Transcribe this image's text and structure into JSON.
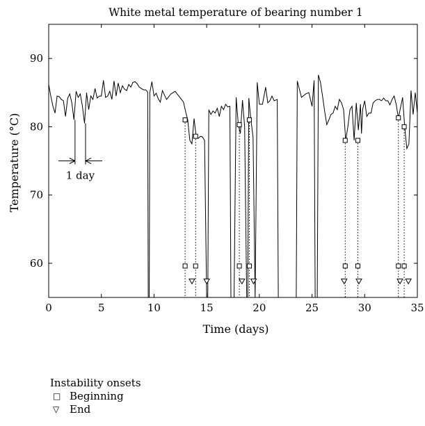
{
  "chart_data": {
    "type": "line",
    "title": "White metal temperature of bearing number 1",
    "xlabel": "Time (days)",
    "ylabel": "Temperature (°C)",
    "xlim": [
      0,
      35
    ],
    "ylim": [
      55,
      95
    ],
    "x_ticks": [
      0,
      5,
      10,
      15,
      20,
      25,
      30,
      35
    ],
    "y_ticks": [
      60,
      70,
      80,
      90
    ],
    "grid": false,
    "series": [
      {
        "points": [
          [
            0.0,
            86.2
          ],
          [
            0.2,
            84.5
          ],
          [
            0.4,
            83.0
          ],
          [
            0.6,
            82.0
          ],
          [
            0.8,
            84.5
          ],
          [
            1.0,
            84.4
          ],
          [
            1.2,
            84.0
          ],
          [
            1.4,
            83.8
          ],
          [
            1.6,
            81.5
          ],
          [
            1.8,
            84.2
          ],
          [
            2.0,
            84.8
          ],
          [
            2.2,
            83.5
          ],
          [
            2.4,
            81.0
          ],
          [
            2.6,
            85.2
          ],
          [
            2.8,
            84.3
          ],
          [
            3.0,
            84.8
          ],
          [
            3.2,
            83.0
          ],
          [
            3.4,
            80.5
          ],
          [
            3.6,
            85.0
          ],
          [
            3.8,
            82.5
          ],
          [
            4.0,
            84.5
          ],
          [
            4.2,
            84.0
          ],
          [
            4.4,
            85.6
          ],
          [
            4.6,
            84.2
          ],
          [
            4.8,
            84.5
          ],
          [
            5.0,
            84.5
          ],
          [
            5.2,
            86.8
          ],
          [
            5.4,
            84.3
          ],
          [
            5.6,
            84.5
          ],
          [
            5.8,
            85.2
          ],
          [
            6.0,
            84.0
          ],
          [
            6.2,
            86.7
          ],
          [
            6.4,
            84.5
          ],
          [
            6.6,
            86.4
          ],
          [
            6.8,
            85.0
          ],
          [
            7.0,
            86.0
          ],
          [
            7.2,
            85.5
          ],
          [
            7.4,
            85.3
          ],
          [
            7.6,
            86.2
          ],
          [
            7.8,
            85.8
          ],
          [
            8.0,
            86.5
          ],
          [
            8.2,
            86.6
          ],
          [
            8.4,
            86.3
          ],
          [
            8.6,
            85.8
          ],
          [
            8.8,
            85.6
          ],
          [
            9.0,
            85.4
          ],
          [
            9.2,
            85.4
          ],
          [
            9.4,
            85.1
          ],
          [
            9.45,
            55.0
          ],
          [
            9.55,
            55.0
          ],
          [
            9.6,
            85.0
          ],
          [
            9.8,
            86.6
          ],
          [
            10.0,
            84.5
          ],
          [
            10.2,
            84.9
          ],
          [
            10.4,
            84.1
          ],
          [
            10.6,
            83.6
          ],
          [
            10.8,
            85.3
          ],
          [
            11.0,
            84.6
          ],
          [
            11.2,
            84.0
          ],
          [
            11.4,
            84.4
          ],
          [
            11.6,
            84.8
          ],
          [
            11.8,
            85.0
          ],
          [
            12.0,
            85.2
          ],
          [
            12.2,
            84.8
          ],
          [
            12.4,
            84.4
          ],
          [
            12.6,
            84.0
          ],
          [
            12.8,
            83.6
          ],
          [
            13.0,
            82.2
          ],
          [
            13.2,
            81.0
          ],
          [
            13.4,
            78.0
          ],
          [
            13.6,
            77.5
          ],
          [
            13.8,
            81.2
          ],
          [
            14.0,
            78.6
          ],
          [
            14.2,
            78.3
          ],
          [
            14.4,
            78.6
          ],
          [
            14.6,
            78.5
          ],
          [
            14.8,
            78.0
          ],
          [
            15.0,
            55.0
          ],
          [
            15.1,
            55.0
          ],
          [
            15.2,
            82.5
          ],
          [
            15.4,
            81.8
          ],
          [
            15.6,
            82.3
          ],
          [
            15.8,
            82.0
          ],
          [
            16.0,
            82.7
          ],
          [
            16.2,
            81.5
          ],
          [
            16.4,
            83.0
          ],
          [
            16.6,
            82.5
          ],
          [
            16.8,
            83.3
          ],
          [
            17.0,
            82.9
          ],
          [
            17.2,
            83.0
          ],
          [
            17.3,
            55.0
          ],
          [
            17.6,
            55.0
          ],
          [
            17.8,
            84.3
          ],
          [
            18.0,
            80.3
          ],
          [
            18.2,
            79.0
          ],
          [
            18.4,
            83.9
          ],
          [
            18.6,
            80.0
          ],
          [
            18.8,
            55.0
          ],
          [
            18.9,
            55.0
          ],
          [
            19.0,
            84.2
          ],
          [
            19.2,
            81.0
          ],
          [
            19.4,
            78.5
          ],
          [
            19.6,
            55.0
          ],
          [
            19.8,
            86.5
          ],
          [
            20.0,
            83.3
          ],
          [
            20.3,
            83.3
          ],
          [
            20.6,
            85.8
          ],
          [
            20.8,
            83.5
          ],
          [
            21.0,
            83.8
          ],
          [
            21.2,
            84.5
          ],
          [
            21.4,
            83.8
          ],
          [
            21.7,
            84.0
          ],
          [
            21.8,
            55.0
          ],
          [
            23.5,
            55.0
          ],
          [
            23.6,
            86.7
          ],
          [
            24.0,
            84.3
          ],
          [
            24.4,
            84.8
          ],
          [
            24.7,
            85.0
          ],
          [
            25.0,
            83.0
          ],
          [
            25.2,
            86.8
          ],
          [
            25.3,
            55.0
          ],
          [
            25.5,
            55.0
          ],
          [
            25.6,
            87.6
          ],
          [
            25.8,
            86.5
          ],
          [
            26.0,
            84.5
          ],
          [
            26.2,
            82.3
          ],
          [
            26.4,
            80.3
          ],
          [
            26.6,
            81.0
          ],
          [
            26.8,
            81.8
          ],
          [
            27.0,
            82.0
          ],
          [
            27.2,
            83.0
          ],
          [
            27.4,
            82.5
          ],
          [
            27.6,
            84.0
          ],
          [
            27.8,
            83.5
          ],
          [
            28.0,
            82.5
          ],
          [
            28.2,
            78.0
          ],
          [
            28.4,
            80.0
          ],
          [
            28.6,
            82.5
          ],
          [
            28.8,
            83.0
          ],
          [
            29.0,
            78.0
          ],
          [
            29.2,
            83.5
          ],
          [
            29.4,
            79.5
          ],
          [
            29.6,
            83.3
          ],
          [
            29.7,
            79.0
          ],
          [
            29.8,
            82.5
          ],
          [
            30.0,
            83.8
          ],
          [
            30.2,
            81.5
          ],
          [
            30.4,
            82.0
          ],
          [
            30.6,
            82.0
          ],
          [
            30.8,
            83.5
          ],
          [
            31.0,
            83.8
          ],
          [
            31.2,
            84.0
          ],
          [
            31.4,
            84.0
          ],
          [
            31.6,
            83.8
          ],
          [
            31.8,
            84.2
          ],
          [
            32.0,
            83.8
          ],
          [
            32.2,
            83.8
          ],
          [
            32.4,
            83.2
          ],
          [
            32.6,
            84.0
          ],
          [
            32.8,
            84.5
          ],
          [
            33.0,
            83.2
          ],
          [
            33.2,
            81.3
          ],
          [
            33.4,
            82.8
          ],
          [
            33.6,
            84.3
          ],
          [
            33.8,
            80.0
          ],
          [
            34.0,
            76.8
          ],
          [
            34.2,
            77.5
          ],
          [
            34.4,
            85.3
          ],
          [
            34.6,
            81.8
          ],
          [
            34.8,
            85.0
          ],
          [
            35.0,
            82.0
          ]
        ]
      }
    ],
    "instability_onsets": {
      "beginning": [
        12.95,
        13.95,
        18.1,
        19.05,
        28.15,
        29.35,
        33.2,
        33.75
      ],
      "beginning_on_curve": [
        81.0,
        78.6,
        80.3,
        81.0,
        78.0,
        78.0,
        81.3,
        80.0
      ],
      "beginning_marker_y": 59.6,
      "end": [
        13.6,
        15.0,
        18.35,
        19.45,
        28.05,
        29.45,
        33.35,
        34.15
      ],
      "end_marker_y": 57.4
    },
    "annotation": {
      "text": "1 day",
      "x_from": 2.5,
      "x_to": 3.5
    },
    "legend": {
      "title": "Instability onsets",
      "items": [
        {
          "symbol": "□",
          "label": "Beginning"
        },
        {
          "symbol": "▽",
          "label": "End"
        }
      ]
    }
  }
}
